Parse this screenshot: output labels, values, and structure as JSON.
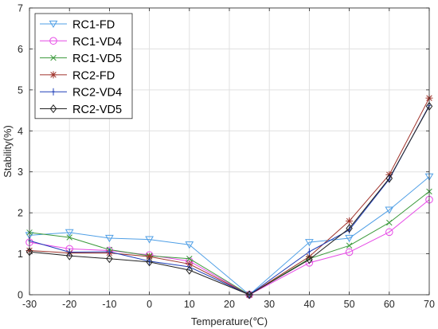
{
  "chart_data": {
    "type": "line",
    "title": "",
    "xlabel": "Temperature(℃)",
    "ylabel": "Stability(%)",
    "xlim": [
      -30,
      70
    ],
    "ylim": [
      0,
      7
    ],
    "x_ticks": [
      -30,
      -20,
      -10,
      0,
      10,
      20,
      30,
      40,
      50,
      60,
      70
    ],
    "y_ticks": [
      0,
      1,
      2,
      3,
      4,
      5,
      6,
      7
    ],
    "grid": true,
    "legend_position": "top-left",
    "x": [
      -30,
      -20,
      -10,
      0,
      10,
      25,
      40,
      50,
      60,
      70
    ],
    "series": [
      {
        "name": "RC1-FD",
        "color": "#4f9fe6",
        "marker": "triangle-down",
        "values": [
          1.45,
          1.52,
          1.38,
          1.35,
          1.22,
          0.0,
          1.28,
          1.38,
          2.07,
          2.88
        ]
      },
      {
        "name": "RC1-VD4",
        "color": "#e649e6",
        "marker": "circle",
        "values": [
          1.28,
          1.12,
          1.08,
          0.97,
          0.82,
          0.0,
          0.78,
          1.04,
          1.53,
          2.32
        ]
      },
      {
        "name": "RC1-VD5",
        "color": "#3b9a3b",
        "marker": "x",
        "values": [
          1.52,
          1.4,
          1.1,
          0.95,
          0.88,
          0.0,
          0.88,
          1.2,
          1.76,
          2.52
        ]
      },
      {
        "name": "RC2-FD",
        "color": "#a0332b",
        "marker": "asterisk",
        "values": [
          1.08,
          1.02,
          1.02,
          0.93,
          0.75,
          0.0,
          0.93,
          1.8,
          2.93,
          4.8
        ]
      },
      {
        "name": "RC2-VD4",
        "color": "#1f3fb8",
        "marker": "plus",
        "values": [
          1.32,
          1.04,
          1.05,
          0.82,
          0.68,
          0.0,
          1.05,
          1.58,
          2.82,
          4.62
        ]
      },
      {
        "name": "RC2-VD5",
        "color": "#222222",
        "marker": "diamond",
        "values": [
          1.05,
          0.95,
          0.88,
          0.8,
          0.6,
          0.0,
          0.86,
          1.62,
          2.84,
          4.6
        ]
      }
    ]
  }
}
